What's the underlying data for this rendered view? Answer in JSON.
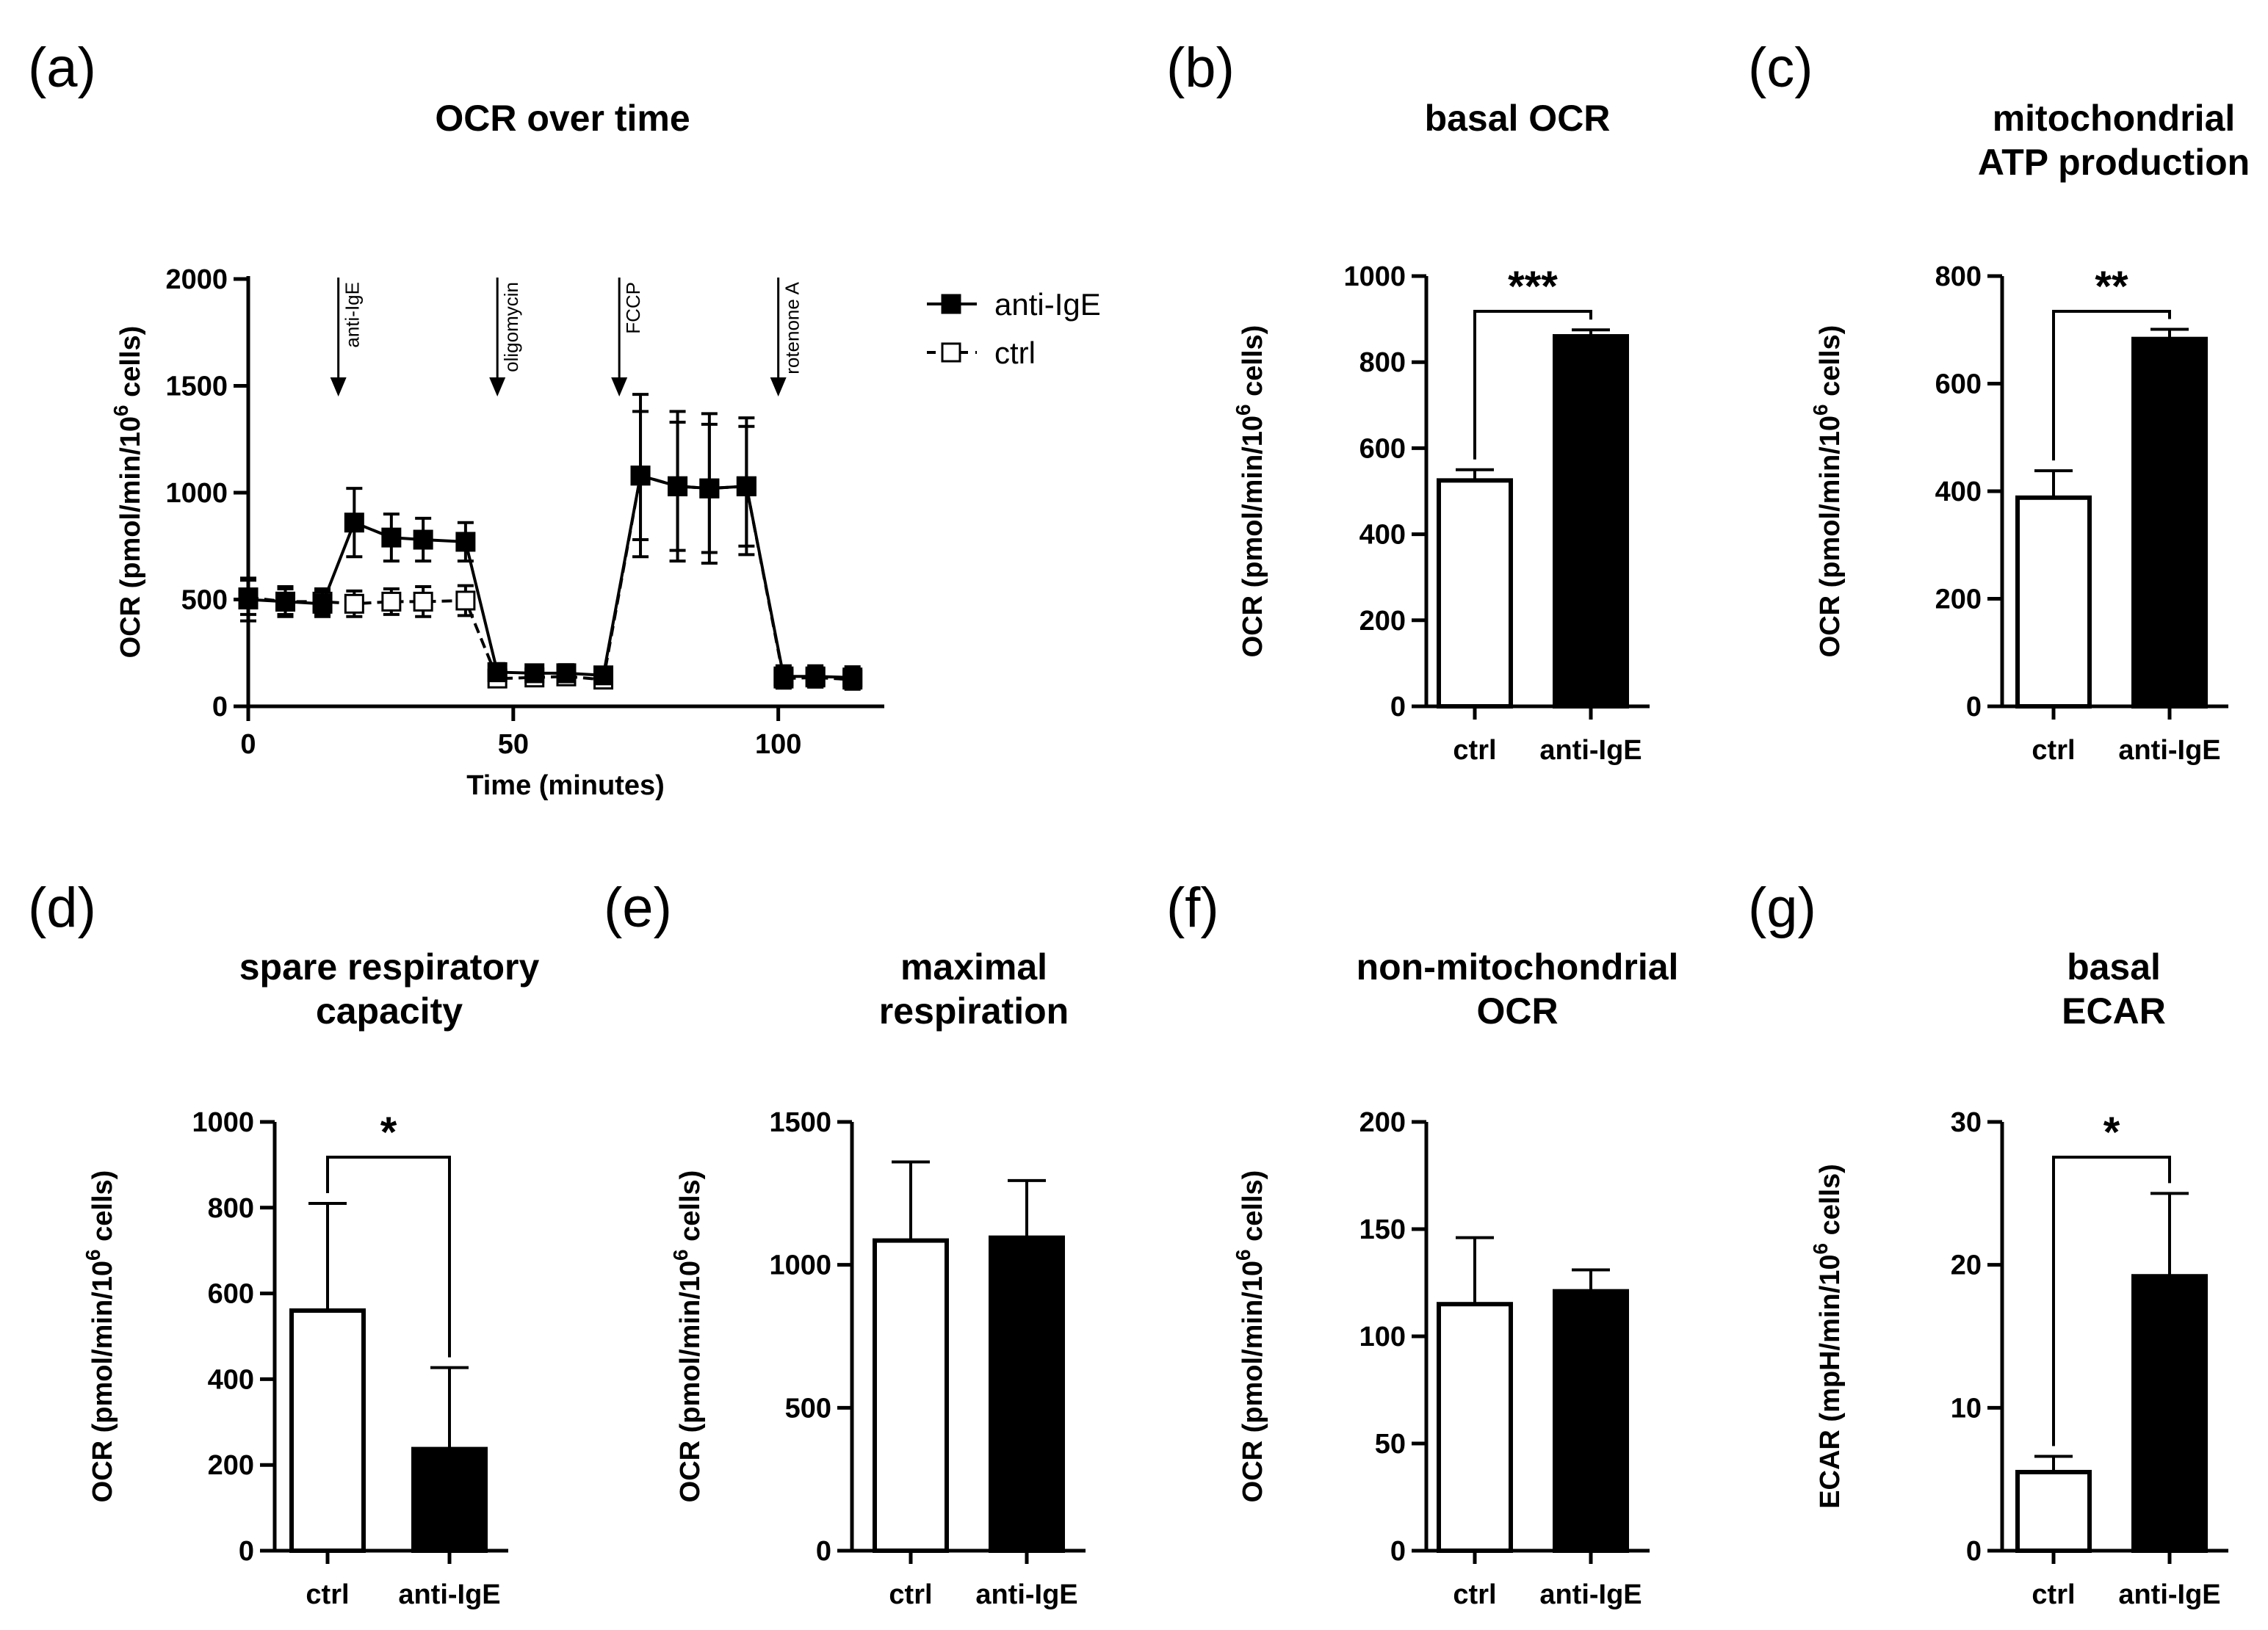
{
  "colors": {
    "ink": "#000000",
    "filled_bar": "#000000",
    "open_bar": "#ffffff",
    "background": "#ffffff"
  },
  "chart_data": [
    {
      "id": "a",
      "panel_letter": "(a)",
      "type": "line",
      "title": "OCR over time",
      "xlabel": "Time (minutes)",
      "ylabel": "OCR (pmol/min/10^6 cells)",
      "ylabel_parts": [
        "OCR (pmol/min/10",
        "6",
        " cells)"
      ],
      "xlim": [
        0,
        120
      ],
      "ylim": [
        0,
        2000
      ],
      "xticks": [
        0,
        50,
        100
      ],
      "yticks": [
        0,
        500,
        1000,
        1500,
        2000
      ],
      "legend_position": "top-right",
      "injections": [
        {
          "label": "anti-IgE",
          "x": 17
        },
        {
          "label": "oligomycin",
          "x": 47
        },
        {
          "label": "FCCP",
          "x": 70
        },
        {
          "label": "rotenone A",
          "x": 100
        }
      ],
      "series": [
        {
          "name": "anti-IgE",
          "marker": "filled-square",
          "line": "solid",
          "x": [
            0,
            7,
            14,
            20,
            27,
            33,
            41,
            47,
            54,
            60,
            67,
            74,
            81,
            87,
            94,
            101,
            107,
            114
          ],
          "y": [
            500,
            490,
            480,
            860,
            790,
            780,
            770,
            160,
            155,
            155,
            145,
            1080,
            1030,
            1020,
            1030,
            140,
            140,
            135
          ],
          "err": [
            100,
            70,
            60,
            160,
            110,
            100,
            90,
            40,
            35,
            40,
            30,
            380,
            350,
            350,
            320,
            50,
            50,
            50
          ]
        },
        {
          "name": "ctrl",
          "marker": "open-square",
          "line": "dashed",
          "x": [
            0,
            7,
            14,
            20,
            27,
            33,
            41,
            47,
            54,
            60,
            67,
            74,
            81,
            87,
            94,
            101,
            107,
            114
          ],
          "y": [
            510,
            490,
            490,
            480,
            490,
            490,
            495,
            130,
            135,
            140,
            125,
            1080,
            1030,
            1020,
            1030,
            130,
            135,
            125
          ],
          "err": [
            80,
            60,
            60,
            60,
            60,
            70,
            70,
            35,
            35,
            35,
            30,
            300,
            300,
            300,
            280,
            45,
            45,
            45
          ]
        }
      ]
    },
    {
      "id": "b",
      "panel_letter": "(b)",
      "type": "bar",
      "title_lines": [
        "basal OCR"
      ],
      "ylabel_parts": [
        "OCR (pmol/min/10",
        "6",
        " cells)"
      ],
      "categories": [
        "ctrl",
        "anti-IgE"
      ],
      "values": [
        525,
        860
      ],
      "errors": [
        25,
        15
      ],
      "ylim": [
        0,
        1000
      ],
      "yticks": [
        0,
        200,
        400,
        600,
        800,
        1000
      ],
      "significance": "***"
    },
    {
      "id": "c",
      "panel_letter": "(c)",
      "type": "bar",
      "title_lines": [
        "mitochondrial",
        "ATP production"
      ],
      "ylabel_parts": [
        "OCR (pmol/min/10",
        "6",
        " cells)"
      ],
      "categories": [
        "ctrl",
        "anti-IgE"
      ],
      "values": [
        388,
        683
      ],
      "errors": [
        50,
        18
      ],
      "ylim": [
        0,
        800
      ],
      "yticks": [
        0,
        200,
        400,
        600,
        800
      ],
      "significance": "**"
    },
    {
      "id": "d",
      "panel_letter": "(d)",
      "type": "bar",
      "title_lines": [
        "spare respiratory",
        "capacity"
      ],
      "ylabel_parts": [
        "OCR (pmol/min/10",
        "6",
        " cells)"
      ],
      "categories": [
        "ctrl",
        "anti-IgE"
      ],
      "values": [
        560,
        237
      ],
      "errors": [
        250,
        190
      ],
      "ylim": [
        0,
        1000
      ],
      "yticks": [
        0,
        200,
        400,
        600,
        800,
        1000
      ],
      "significance": "*"
    },
    {
      "id": "e",
      "panel_letter": "(e)",
      "type": "bar",
      "title_lines": [
        "maximal",
        "respiration"
      ],
      "ylabel_parts": [
        "OCR (pmol/min/10",
        "6",
        " cells)"
      ],
      "categories": [
        "ctrl",
        "anti-IgE"
      ],
      "values": [
        1085,
        1095
      ],
      "errors": [
        275,
        200
      ],
      "ylim": [
        0,
        1500
      ],
      "yticks": [
        0,
        500,
        1000,
        1500
      ],
      "significance": ""
    },
    {
      "id": "f",
      "panel_letter": "(f)",
      "type": "bar",
      "title_lines": [
        "non-mitochondrial",
        "OCR"
      ],
      "ylabel_parts": [
        "OCR (pmol/min/10",
        "6",
        " cells)"
      ],
      "categories": [
        "ctrl",
        "anti-IgE"
      ],
      "values": [
        115,
        121
      ],
      "errors": [
        31,
        10
      ],
      "ylim": [
        0,
        200
      ],
      "yticks": [
        0,
        50,
        100,
        150,
        200
      ],
      "significance": ""
    },
    {
      "id": "g",
      "panel_letter": "(g)",
      "type": "bar",
      "title_lines": [
        "basal",
        "ECAR"
      ],
      "ylabel_parts": [
        "ECAR (mpH/min/10",
        "6",
        " cells)"
      ],
      "categories": [
        "ctrl",
        "anti-IgE"
      ],
      "values": [
        5.5,
        19.2
      ],
      "errors": [
        1.1,
        5.8
      ],
      "ylim": [
        0,
        30
      ],
      "yticks": [
        0,
        10,
        20,
        30
      ],
      "significance": "*"
    }
  ]
}
